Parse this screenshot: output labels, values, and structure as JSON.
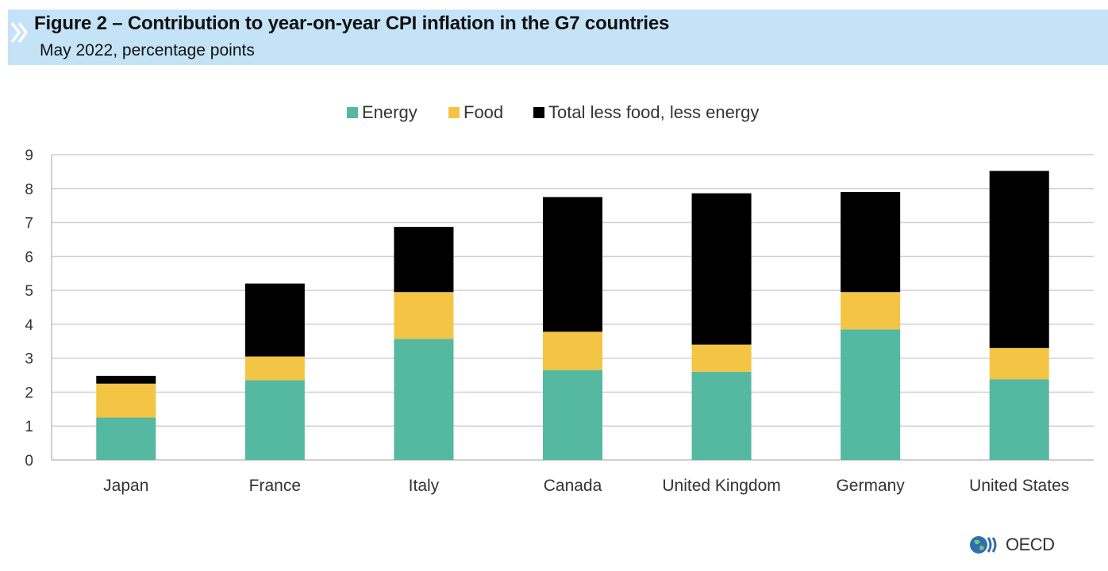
{
  "header": {
    "title": "Figure 2 – Contribution to year-on-year CPI inflation in the G7 countries",
    "subtitle": "May 2022, percentage points"
  },
  "logo": {
    "text": "OECD",
    "icon": "globe-icon"
  },
  "colors": {
    "energy": "#55b8a0",
    "food": "#f4c444",
    "core": "#000000",
    "grid": "#d0d0d0",
    "axis": "#bfbfbf",
    "header_bg": "#c5e3f7"
  },
  "chart_data": {
    "type": "bar",
    "stacked": true,
    "title": "",
    "xlabel": "",
    "ylabel": "",
    "ylim": [
      0,
      9
    ],
    "yticks": [
      0,
      1,
      2,
      3,
      4,
      5,
      6,
      7,
      8,
      9
    ],
    "grid": true,
    "legend_position": "top",
    "categories": [
      "Japan",
      "France",
      "Italy",
      "Canada",
      "United Kingdom",
      "Germany",
      "United States"
    ],
    "series": [
      {
        "name": "Energy",
        "color": "#55b8a0",
        "values": [
          1.25,
          2.35,
          3.57,
          2.65,
          2.6,
          3.85,
          2.38
        ]
      },
      {
        "name": "Food",
        "color": "#f4c444",
        "values": [
          1.0,
          0.7,
          1.38,
          1.13,
          0.8,
          1.1,
          0.92
        ]
      },
      {
        "name": "Total less food, less energy",
        "color": "#000000",
        "values": [
          0.23,
          2.15,
          1.92,
          3.97,
          4.46,
          2.95,
          5.22
        ]
      }
    ]
  }
}
